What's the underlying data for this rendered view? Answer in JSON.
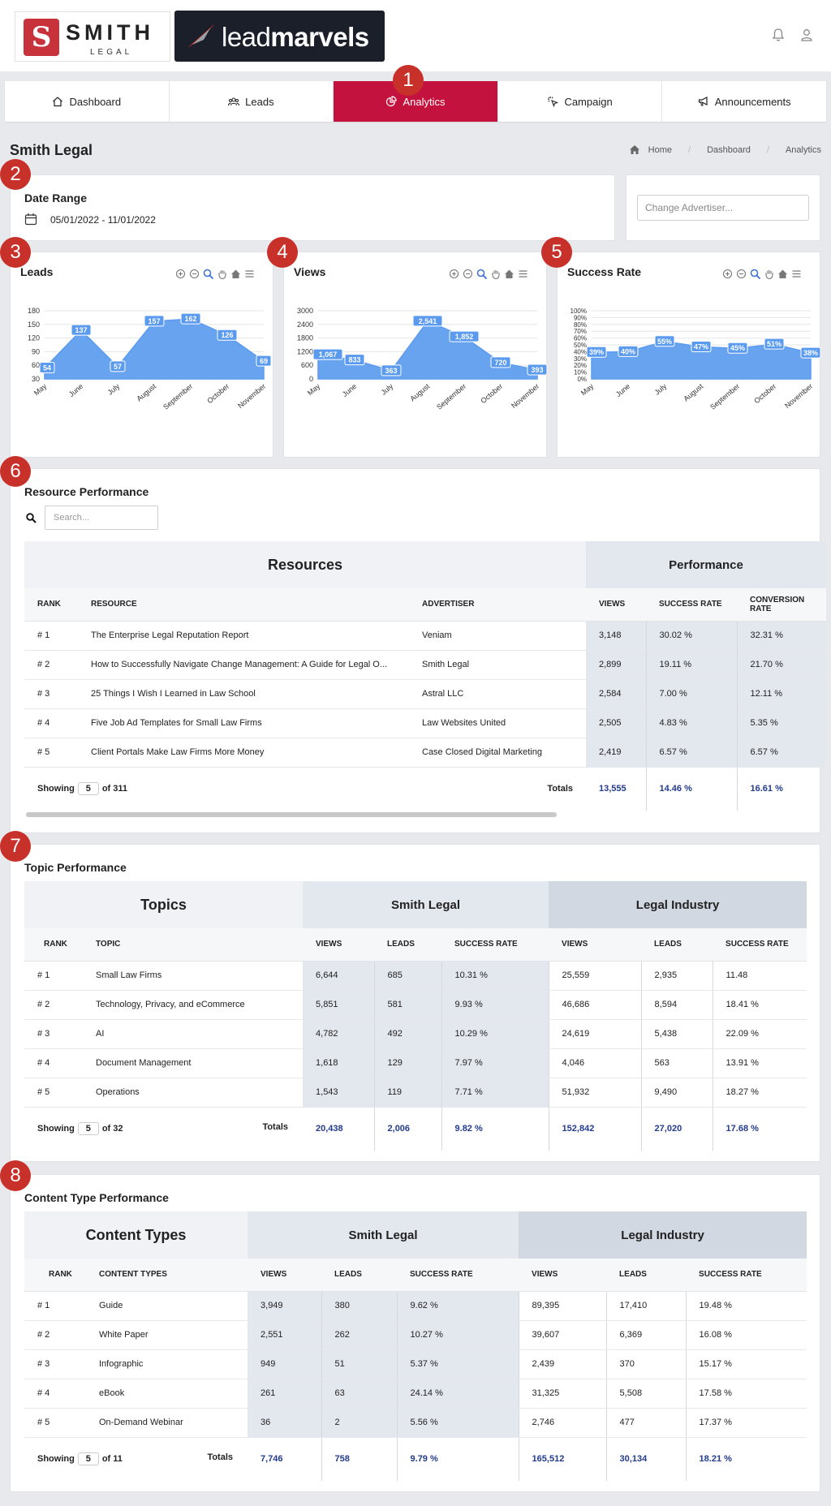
{
  "header": {
    "logo_smith": "SMITH",
    "logo_smith_sub": "LEGAL",
    "logo_lm_light": "lead",
    "logo_lm_bold": "marvels"
  },
  "nav": {
    "items": [
      {
        "label": "Dashboard",
        "icon": "home-icon"
      },
      {
        "label": "Leads",
        "icon": "users-icon"
      },
      {
        "label": "Analytics",
        "icon": "pie-chart-icon",
        "active": true
      },
      {
        "label": "Campaign",
        "icon": "cursor-click-icon"
      },
      {
        "label": "Announcements",
        "icon": "megaphone-icon"
      }
    ]
  },
  "badges": [
    "1",
    "2",
    "3",
    "4",
    "5",
    "6",
    "7",
    "8"
  ],
  "page": {
    "title": "Smith Legal"
  },
  "breadcrumb": [
    "Home",
    "Dashboard",
    "Analytics"
  ],
  "date_range": {
    "label": "Date Range",
    "value": "05/01/2022 - 11/01/2022"
  },
  "advertiser": {
    "placeholder": "Change Advertiser..."
  },
  "colors": {
    "accent": "#c3123e",
    "chart": "#5b9bef",
    "badge": "#c8302a"
  },
  "chart_data": [
    {
      "type": "area",
      "title": "Leads",
      "categories": [
        "May",
        "June",
        "July",
        "August",
        "September",
        "October",
        "November"
      ],
      "values": [
        54,
        137,
        57,
        157,
        162,
        126,
        69
      ],
      "yticks": [
        "180",
        "150",
        "120",
        "90",
        "60",
        "30"
      ],
      "ylim": [
        30,
        180
      ]
    },
    {
      "type": "area",
      "title": "Views",
      "categories": [
        "May",
        "June",
        "July",
        "August",
        "September",
        "October",
        "November"
      ],
      "values": [
        1067,
        833,
        363,
        2541,
        1852,
        720,
        393
      ],
      "labels": [
        "1,067",
        "833",
        "363",
        "2,541",
        "1,852",
        "720",
        "393"
      ],
      "yticks": [
        "3000",
        "2400",
        "1800",
        "1200",
        "600",
        "0"
      ],
      "ylim": [
        0,
        3000
      ]
    },
    {
      "type": "area",
      "title": "Success Rate",
      "categories": [
        "May",
        "June",
        "July",
        "August",
        "September",
        "October",
        "November"
      ],
      "values": [
        39,
        40,
        55,
        47,
        45,
        51,
        38
      ],
      "labels": [
        "39%",
        "40%",
        "55%",
        "47%",
        "45%",
        "51%",
        "38%"
      ],
      "yticks": [
        "100%",
        "90%",
        "80%",
        "70%",
        "60%",
        "50%",
        "40%",
        "30%",
        "20%",
        "10%",
        "0%"
      ],
      "ylim": [
        0,
        100
      ]
    }
  ],
  "resource": {
    "title": "Resource Performance",
    "search_placeholder": "Search...",
    "group_left": "Resources",
    "group_right": "Performance",
    "cols": [
      "RANK",
      "RESOURCE",
      "ADVERTISER",
      "VIEWS",
      "SUCCESS RATE",
      "CONVERSION RATE"
    ],
    "rows": [
      [
        "# 1",
        "The Enterprise Legal Reputation Report",
        "Veniam",
        "3,148",
        "30.02 %",
        "32.31 %"
      ],
      [
        "# 2",
        "How to Successfully Navigate Change Management: A Guide for Legal O...",
        "Smith Legal",
        "2,899",
        "19.11 %",
        "21.70 %"
      ],
      [
        "# 3",
        "25 Things I Wish I Learned in Law School",
        "Astral LLC",
        "2,584",
        "7.00 %",
        "12.11 %"
      ],
      [
        "# 4",
        "Five Job Ad Templates for Small Law Firms",
        "Law Websites United",
        "2,505",
        "4.83 %",
        "5.35 %"
      ],
      [
        "# 5",
        "Client Portals Make Law Firms More Money",
        "Case Closed Digital Marketing",
        "2,419",
        "6.57 %",
        "6.57 %"
      ]
    ],
    "showing": "Showing",
    "page_size": "5",
    "of_total": "of 311",
    "totals_label": "Totals",
    "totals": [
      "13,555",
      "14.46 %",
      "16.61 %"
    ]
  },
  "topic": {
    "title": "Topic Performance",
    "group_left": "Topics",
    "group_mid": "Smith Legal",
    "group_right": "Legal Industry",
    "cols": [
      "RANK",
      "TOPIC",
      "VIEWS",
      "LEADS",
      "SUCCESS RATE",
      "VIEWS",
      "LEADS",
      "SUCCESS RATE"
    ],
    "rows": [
      [
        "# 1",
        "Small Law Firms",
        "6,644",
        "685",
        "10.31 %",
        "25,559",
        "2,935",
        "11.48"
      ],
      [
        "# 2",
        "Technology, Privacy, and eCommerce",
        "5,851",
        "581",
        "9.93 %",
        "46,686",
        "8,594",
        "18.41 %"
      ],
      [
        "# 3",
        "AI",
        "4,782",
        "492",
        "10.29 %",
        "24,619",
        "5,438",
        "22.09 %"
      ],
      [
        "# 4",
        "Document Management",
        "1,618",
        "129",
        "7.97 %",
        "4,046",
        "563",
        "13.91 %"
      ],
      [
        "# 5",
        "Operations",
        "1,543",
        "119",
        "7.71 %",
        "51,932",
        "9,490",
        "18.27 %"
      ]
    ],
    "showing": "Showing",
    "page_size": "5",
    "of_total": "of 32",
    "totals_label": "Totals",
    "totals": [
      "20,438",
      "2,006",
      "9.82 %",
      "152,842",
      "27,020",
      "17.68 %"
    ]
  },
  "content": {
    "title": "Content Type Performance",
    "group_left": "Content Types",
    "group_mid": "Smith Legal",
    "group_right": "Legal Industry",
    "cols": [
      "RANK",
      "CONTENT TYPES",
      "VIEWS",
      "LEADS",
      "SUCCESS RATE",
      "VIEWS",
      "LEADS",
      "SUCCESS RATE"
    ],
    "rows": [
      [
        "# 1",
        "Guide",
        "3,949",
        "380",
        "9.62 %",
        "89,395",
        "17,410",
        "19.48 %"
      ],
      [
        "# 2",
        "White Paper",
        "2,551",
        "262",
        "10.27 %",
        "39,607",
        "6,369",
        "16.08 %"
      ],
      [
        "# 3",
        "Infographic",
        "949",
        "51",
        "5.37 %",
        "2,439",
        "370",
        "15.17 %"
      ],
      [
        "# 4",
        "eBook",
        "261",
        "63",
        "24.14 %",
        "31,325",
        "5,508",
        "17.58 %"
      ],
      [
        "# 5",
        "On-Demand Webinar",
        "36",
        "2",
        "5.56 %",
        "2,746",
        "477",
        "17.37 %"
      ]
    ],
    "showing": "Showing",
    "page_size": "5",
    "of_total": "of 11",
    "totals_label": "Totals",
    "totals": [
      "7,746",
      "758",
      "9.79 %",
      "165,512",
      "30,134",
      "18.21 %"
    ]
  }
}
